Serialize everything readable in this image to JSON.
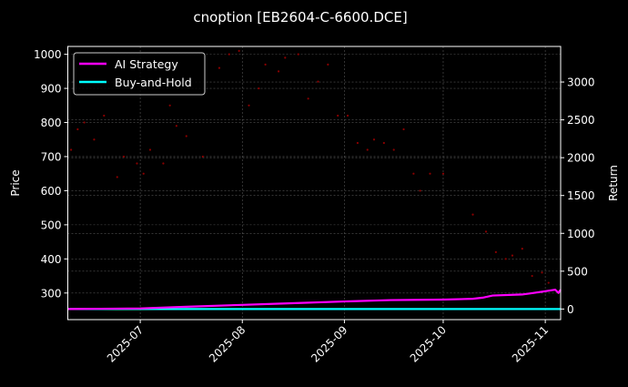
{
  "chart_data": {
    "type": "line",
    "title": "cnoption [EB2604-C-6600.DCE]",
    "xlabel": "",
    "ylabel_left": "Price",
    "ylabel_right": "Return",
    "xlim": [
      "2025-06-09",
      "2025-11-05T16:00"
    ],
    "ylim_left": [
      222,
      1023
    ],
    "ylim_right": [
      -140,
      3470
    ],
    "x_ticks": [
      "2025-07",
      "2025-08",
      "2025-09",
      "2025-10",
      "2025-11"
    ],
    "x_tick_dates": [
      "2025-07-01",
      "2025-08-01",
      "2025-09-01",
      "2025-10-01",
      "2025-11-01"
    ],
    "y_ticks_left": [
      300,
      400,
      500,
      600,
      700,
      800,
      900,
      1000
    ],
    "y_ticks_right": [
      0,
      500,
      1000,
      1500,
      2000,
      2500,
      3000
    ],
    "grid": true,
    "legend_position": "top-left",
    "colors": {
      "strategy": "#ff00ff",
      "buyhold": "#00ffff",
      "price": "#8b0000",
      "background": "#000000"
    },
    "series": [
      {
        "name": "AI Strategy",
        "axis": "right",
        "points": [
          [
            "2025-06-09",
            0
          ],
          [
            "2025-07-01",
            8
          ],
          [
            "2025-07-15",
            30
          ],
          [
            "2025-08-01",
            55
          ],
          [
            "2025-08-15",
            75
          ],
          [
            "2025-09-01",
            100
          ],
          [
            "2025-09-15",
            118
          ],
          [
            "2025-10-01",
            125
          ],
          [
            "2025-10-10",
            135
          ],
          [
            "2025-10-13",
            150
          ],
          [
            "2025-10-16",
            178
          ],
          [
            "2025-10-25",
            192
          ],
          [
            "2025-10-28",
            210
          ],
          [
            "2025-11-01",
            235
          ],
          [
            "2025-11-04",
            255
          ],
          [
            "2025-11-05",
            215
          ],
          [
            "2025-11-05T16:00",
            255
          ]
        ]
      },
      {
        "name": "Buy-and-Hold",
        "axis": "right",
        "points": [
          [
            "2025-06-09",
            0
          ],
          [
            "2025-11-05T16:00",
            0
          ]
        ]
      },
      {
        "name": "Price",
        "axis": "left",
        "style": "scatter",
        "points": [
          [
            "2025-06-10",
            720
          ],
          [
            "2025-06-12",
            780
          ],
          [
            "2025-06-14",
            800
          ],
          [
            "2025-06-17",
            750
          ],
          [
            "2025-06-20",
            820
          ],
          [
            "2025-06-24",
            640
          ],
          [
            "2025-06-26",
            700
          ],
          [
            "2025-06-30",
            680
          ],
          [
            "2025-07-02",
            650
          ],
          [
            "2025-07-04",
            720
          ],
          [
            "2025-07-08",
            680
          ],
          [
            "2025-07-10",
            850
          ],
          [
            "2025-07-12",
            790
          ],
          [
            "2025-07-15",
            760
          ],
          [
            "2025-07-20",
            700
          ],
          [
            "2025-07-25",
            960
          ],
          [
            "2025-07-28",
            1000
          ],
          [
            "2025-07-31",
            1010
          ],
          [
            "2025-08-03",
            850
          ],
          [
            "2025-08-06",
            900
          ],
          [
            "2025-08-08",
            970
          ],
          [
            "2025-08-12",
            950
          ],
          [
            "2025-08-14",
            990
          ],
          [
            "2025-08-18",
            1000
          ],
          [
            "2025-08-21",
            870
          ],
          [
            "2025-08-24",
            920
          ],
          [
            "2025-08-27",
            970
          ],
          [
            "2025-08-30",
            820
          ],
          [
            "2025-09-02",
            820
          ],
          [
            "2025-09-05",
            740
          ],
          [
            "2025-09-08",
            720
          ],
          [
            "2025-09-10",
            750
          ],
          [
            "2025-09-13",
            740
          ],
          [
            "2025-09-16",
            720
          ],
          [
            "2025-09-19",
            780
          ],
          [
            "2025-09-22",
            650
          ],
          [
            "2025-09-24",
            600
          ],
          [
            "2025-09-27",
            650
          ],
          [
            "2025-10-01",
            650
          ],
          [
            "2025-10-10",
            530
          ],
          [
            "2025-10-14",
            480
          ],
          [
            "2025-10-17",
            420
          ],
          [
            "2025-10-20",
            400
          ],
          [
            "2025-10-22",
            410
          ],
          [
            "2025-10-25",
            430
          ],
          [
            "2025-10-28",
            350
          ],
          [
            "2025-10-31",
            360
          ],
          [
            "2025-11-02",
            330
          ],
          [
            "2025-11-05",
            300
          ]
        ]
      }
    ]
  }
}
